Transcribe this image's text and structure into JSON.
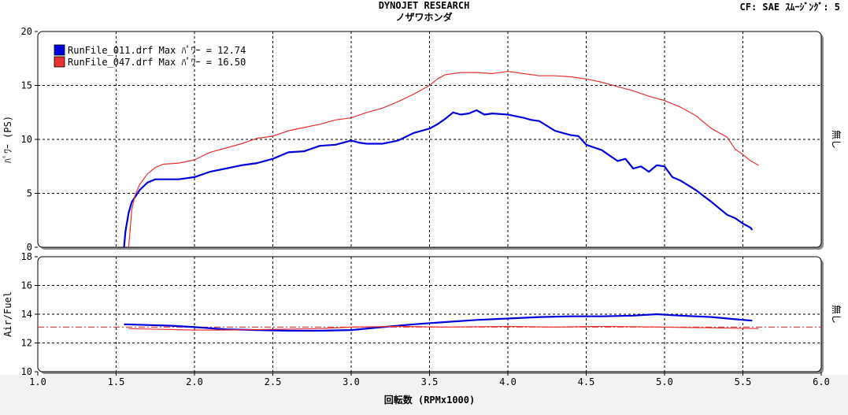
{
  "header": {
    "title": "DYNOJET   RESEARCH",
    "subtitle": "ノザワホンダ",
    "cf_label": "CF: SAE   ｽﾑｰｼﾞﾝｸﾞ: 5"
  },
  "colors": {
    "run011": "#0000dd",
    "run047": "#e83030",
    "afr_target": "#e02020",
    "frame_shadow": "#8c8c8c",
    "bg_gray": "#f2f2f2"
  },
  "chart_data": [
    {
      "type": "line",
      "ylabel": "ﾊﾟﾜｰ (PS)",
      "right_label": "無し",
      "xlim": [
        1.0,
        6.0
      ],
      "ylim": [
        0,
        20
      ],
      "x_ticks": [
        "1.0",
        "1.5",
        "2.0",
        "2.5",
        "3.0",
        "3.5",
        "4.0",
        "4.5",
        "5.0",
        "5.5",
        "6.0"
      ],
      "y_ticks": [
        "0",
        "5",
        "10",
        "15",
        "20"
      ],
      "grid": true,
      "legend_position": "top-left",
      "series": [
        {
          "name": "RunFile_011.drf Max ﾊﾟﾜｰ = 12.74",
          "color": "#0000dd",
          "x": [
            1.55,
            1.56,
            1.58,
            1.6,
            1.65,
            1.7,
            1.75,
            1.8,
            1.9,
            2.0,
            2.1,
            2.2,
            2.3,
            2.4,
            2.5,
            2.6,
            2.7,
            2.8,
            2.9,
            3.0,
            3.05,
            3.1,
            3.2,
            3.3,
            3.4,
            3.5,
            3.55,
            3.6,
            3.65,
            3.7,
            3.75,
            3.8,
            3.85,
            3.9,
            4.0,
            4.1,
            4.15,
            4.2,
            4.3,
            4.35,
            4.4,
            4.45,
            4.5,
            4.6,
            4.65,
            4.7,
            4.75,
            4.8,
            4.85,
            4.9,
            4.95,
            5.0,
            5.05,
            5.1,
            5.2,
            5.3,
            5.35,
            5.4,
            5.45,
            5.5,
            5.55,
            5.56
          ],
          "y": [
            0.0,
            1.5,
            3.2,
            4.2,
            5.3,
            6.0,
            6.3,
            6.3,
            6.3,
            6.5,
            7.0,
            7.3,
            7.6,
            7.8,
            8.2,
            8.8,
            8.9,
            9.4,
            9.5,
            9.9,
            9.7,
            9.6,
            9.6,
            9.9,
            10.6,
            11.0,
            11.4,
            11.9,
            12.5,
            12.3,
            12.4,
            12.7,
            12.3,
            12.4,
            12.3,
            12.0,
            11.8,
            11.7,
            10.8,
            10.6,
            10.4,
            10.3,
            9.5,
            9.0,
            8.5,
            8.0,
            8.2,
            7.3,
            7.5,
            7.0,
            7.6,
            7.5,
            6.5,
            6.2,
            5.3,
            4.2,
            3.6,
            3.0,
            2.7,
            2.2,
            1.8,
            1.6
          ]
        },
        {
          "name": "RunFile_047.drf Max ﾊﾟﾜｰ = 16.50",
          "color": "#e83030",
          "x": [
            1.58,
            1.6,
            1.62,
            1.65,
            1.7,
            1.75,
            1.8,
            1.9,
            2.0,
            2.1,
            2.2,
            2.3,
            2.4,
            2.5,
            2.6,
            2.7,
            2.8,
            2.9,
            3.0,
            3.1,
            3.2,
            3.3,
            3.4,
            3.5,
            3.55,
            3.6,
            3.7,
            3.8,
            3.9,
            4.0,
            4.1,
            4.2,
            4.3,
            4.4,
            4.5,
            4.6,
            4.7,
            4.8,
            4.9,
            5.0,
            5.1,
            5.2,
            5.3,
            5.4,
            5.45,
            5.5,
            5.55,
            5.6
          ],
          "y": [
            0.0,
            3.5,
            4.8,
            5.8,
            6.8,
            7.4,
            7.7,
            7.8,
            8.1,
            8.8,
            9.2,
            9.6,
            10.1,
            10.3,
            10.8,
            11.1,
            11.4,
            11.8,
            12.0,
            12.5,
            12.9,
            13.5,
            14.2,
            15.0,
            15.6,
            16.0,
            16.2,
            16.2,
            16.1,
            16.3,
            16.1,
            15.9,
            15.9,
            15.8,
            15.6,
            15.3,
            14.9,
            14.5,
            14.0,
            13.6,
            13.0,
            12.2,
            11.0,
            10.2,
            9.1,
            8.6,
            8.0,
            7.6
          ]
        }
      ]
    },
    {
      "type": "line",
      "ylabel": "Air/Fuel",
      "right_label": "無し",
      "xlabel": "回転数 (RPMx1000)",
      "xlim": [
        1.0,
        6.0
      ],
      "ylim": [
        10,
        18
      ],
      "y_ticks": [
        "10",
        "12",
        "14",
        "16",
        "18"
      ],
      "grid": true,
      "reference_line": 13.1,
      "series": [
        {
          "color": "#0000dd",
          "x": [
            1.55,
            1.7,
            1.85,
            2.0,
            2.2,
            2.4,
            2.6,
            2.8,
            3.0,
            3.2,
            3.4,
            3.6,
            3.8,
            4.0,
            4.2,
            4.4,
            4.6,
            4.8,
            4.95,
            5.1,
            5.3,
            5.45,
            5.56
          ],
          "y": [
            13.3,
            13.25,
            13.2,
            13.1,
            12.95,
            12.9,
            12.85,
            12.85,
            12.9,
            13.1,
            13.3,
            13.45,
            13.6,
            13.7,
            13.8,
            13.85,
            13.85,
            13.9,
            14.0,
            13.9,
            13.8,
            13.65,
            13.55
          ]
        },
        {
          "color": "#e83030",
          "x": [
            1.58,
            1.8,
            2.0,
            2.2,
            2.5,
            2.8,
            3.0,
            3.3,
            3.6,
            4.0,
            4.3,
            4.6,
            5.0,
            5.3,
            5.6
          ],
          "y": [
            13.0,
            12.95,
            12.9,
            12.9,
            12.95,
            13.0,
            13.1,
            13.15,
            13.1,
            13.15,
            13.1,
            13.15,
            13.1,
            13.05,
            13.0
          ]
        }
      ]
    }
  ]
}
